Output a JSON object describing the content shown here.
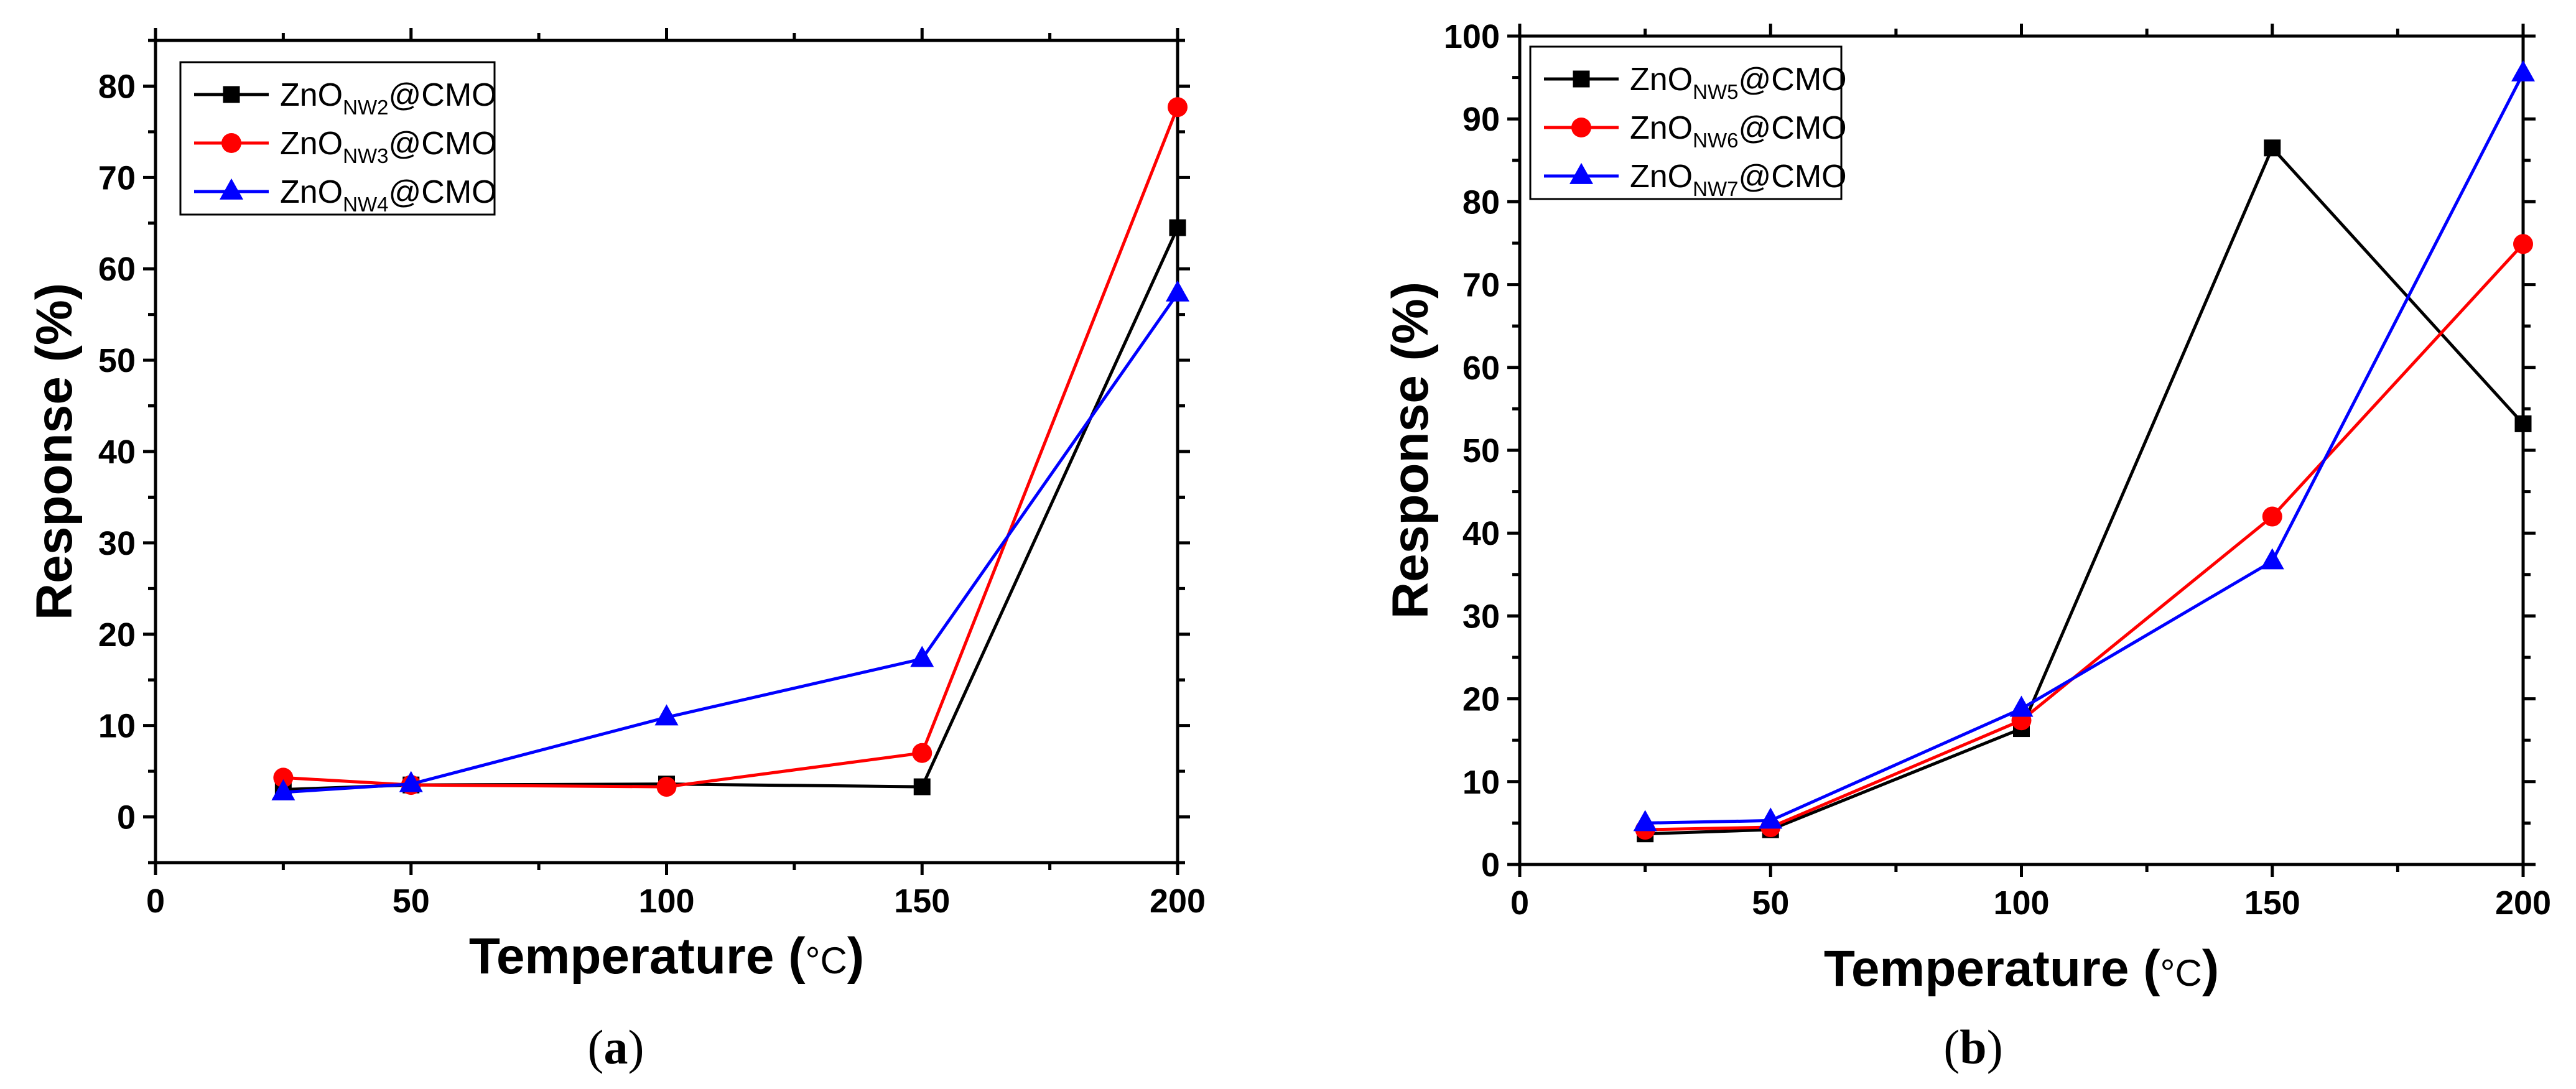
{
  "chart_data": [
    {
      "type": "line",
      "panel": "a",
      "caption_open": "(",
      "caption_letter": "a",
      "caption_close": ")",
      "xlabel_main": "Temperature (",
      "xlabel_unit": "°C",
      "xlabel_close": ")",
      "ylabel": "Response (%)",
      "xlim": [
        0,
        200
      ],
      "ylim": [
        -5,
        85
      ],
      "xticks": [
        0,
        50,
        100,
        150,
        200
      ],
      "yticks": [
        0,
        10,
        20,
        30,
        40,
        50,
        60,
        70,
        80
      ],
      "grid": false,
      "legend_position": "top-left",
      "series": [
        {
          "name": "ZnO_NW2@CMO",
          "label_base": "ZnO",
          "label_sub": "NW2",
          "label_suffix": "@CMO",
          "color": "#000000",
          "marker": "square",
          "x": [
            25,
            50,
            100,
            150,
            200
          ],
          "y": [
            3.0,
            3.5,
            3.6,
            3.3,
            64.5
          ]
        },
        {
          "name": "ZnO_NW3@CMO",
          "label_base": "ZnO",
          "label_sub": "NW3",
          "label_suffix": "@CMO",
          "color": "#ff0000",
          "marker": "circle",
          "x": [
            25,
            50,
            100,
            150,
            200
          ],
          "y": [
            4.3,
            3.5,
            3.3,
            7.0,
            77.7
          ]
        },
        {
          "name": "ZnO_NW4@CMO",
          "label_base": "ZnO",
          "label_sub": "NW4",
          "label_suffix": "@CMO",
          "color": "#0000ff",
          "marker": "triangle",
          "x": [
            25,
            50,
            100,
            150,
            200
          ],
          "y": [
            2.7,
            3.6,
            10.9,
            17.3,
            57.3
          ]
        }
      ]
    },
    {
      "type": "line",
      "panel": "b",
      "caption_open": "(",
      "caption_letter": "b",
      "caption_close": ")",
      "xlabel_main": "Temperature (",
      "xlabel_unit": "°C",
      "xlabel_close": ")",
      "ylabel": "Response (%)",
      "xlim": [
        0,
        200
      ],
      "ylim": [
        0,
        100
      ],
      "xticks": [
        0,
        50,
        100,
        150,
        200
      ],
      "yticks": [
        0,
        10,
        20,
        30,
        40,
        50,
        60,
        70,
        80,
        90,
        100
      ],
      "grid": false,
      "legend_position": "top-left",
      "series": [
        {
          "name": "ZnO_NW5@CMO",
          "label_base": "ZnO",
          "label_sub": "NW5",
          "label_suffix": "@CMO",
          "color": "#000000",
          "marker": "square",
          "x": [
            25,
            50,
            100,
            150,
            200
          ],
          "y": [
            3.7,
            4.2,
            16.4,
            86.5,
            53.2
          ]
        },
        {
          "name": "ZnO_NW6@CMO",
          "label_base": "ZnO",
          "label_sub": "NW6",
          "label_suffix": "@CMO",
          "color": "#ff0000",
          "marker": "circle",
          "x": [
            25,
            50,
            100,
            150,
            200
          ],
          "y": [
            4.2,
            4.5,
            17.4,
            42.0,
            74.9
          ]
        },
        {
          "name": "ZnO_NW7@CMO",
          "label_base": "ZnO",
          "label_sub": "NW7",
          "label_suffix": "@CMO",
          "color": "#0000ff",
          "marker": "triangle",
          "x": [
            25,
            50,
            100,
            150,
            200
          ],
          "y": [
            5.0,
            5.3,
            18.8,
            36.6,
            95.5
          ]
        }
      ]
    }
  ]
}
